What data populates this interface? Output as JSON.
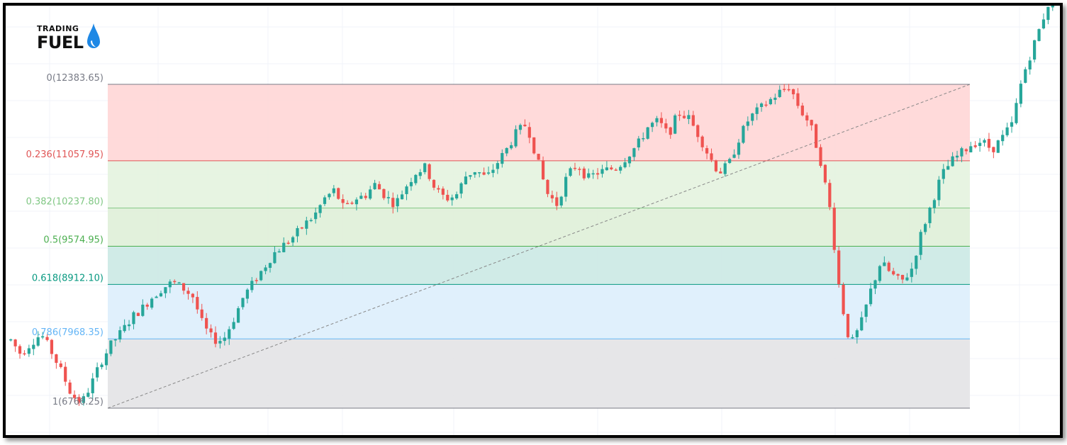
{
  "brand": {
    "top": "TRADING",
    "main": "FUEL",
    "drop_color": "#1e88e5"
  },
  "chart_data": {
    "type": "candlestick",
    "title": "",
    "tool": "Fibonacci retracement",
    "fib_start": 6766.25,
    "fib_end": 12383.65,
    "levels": [
      {
        "ratio": 0,
        "price": 12383.65,
        "label": "0(12383.65)",
        "line_color": "#787b86",
        "text_color": "#787b86",
        "fill": "#ffd6d6"
      },
      {
        "ratio": 0.236,
        "price": 11057.95,
        "label": "0.236(11057.95)",
        "line_color": "#e05656",
        "text_color": "#e05656",
        "fill": "#e4f3df"
      },
      {
        "ratio": 0.382,
        "price": 10237.8,
        "label": "0.382(10237.80)",
        "line_color": "#81c784",
        "text_color": "#81c784",
        "fill": "#dff0d8"
      },
      {
        "ratio": 0.5,
        "price": 9574.95,
        "label": "0.5(9574.95)",
        "line_color": "#4caf50",
        "text_color": "#4caf50",
        "fill": "#cbe9e4"
      },
      {
        "ratio": 0.618,
        "price": 8912.1,
        "label": "0.618(8912.10)",
        "line_color": "#089981",
        "text_color": "#089981",
        "fill": "#ddeefc"
      },
      {
        "ratio": 0.786,
        "price": 7968.35,
        "label": "0.786(7968.35)",
        "line_color": "#64b5f6",
        "text_color": "#64b5f6",
        "fill": "#e3e3e5"
      },
      {
        "ratio": 1,
        "price": 6766.25,
        "label": "1(6766.25)",
        "line_color": "#787b86",
        "text_color": "#787b86",
        "fill": null
      }
    ],
    "candle_up_color": "#26a69a",
    "candle_down_color": "#ef5350",
    "trendline_color": "#888888",
    "price_path": [
      7950,
      7700,
      7900,
      8050,
      7750,
      7400,
      7000,
      6850,
      7200,
      7600,
      7900,
      8100,
      8350,
      8500,
      8700,
      8850,
      8950,
      8850,
      8700,
      8200,
      7950,
      7950,
      8300,
      8700,
      8950,
      9200,
      9450,
      9600,
      9750,
      9950,
      10100,
      10400,
      10550,
      10200,
      10400,
      10450,
      10650,
      10450,
      10300,
      10600,
      10850,
      10950,
      10550,
      10400,
      10450,
      10800,
      10900,
      10750,
      11000,
      11250,
      11550,
      11700,
      11100,
      10500,
      10300,
      10800,
      11000,
      10750,
      10850,
      10900,
      10950,
      11150,
      11350,
      11650,
      11750,
      11500,
      11900,
      11800,
      11500,
      11150,
      10850,
      11000,
      11450,
      11800,
      11950,
      12100,
      12250,
      12350,
      11950,
      11700,
      11100,
      10200,
      8700,
      7850,
      8200,
      8800,
      9300,
      9100,
      8950,
      9150,
      9800,
      10300,
      10800,
      11050,
      11200,
      11350,
      11400,
      11250,
      11450,
      11700,
      12500,
      13000,
      13500,
      14000
    ]
  }
}
